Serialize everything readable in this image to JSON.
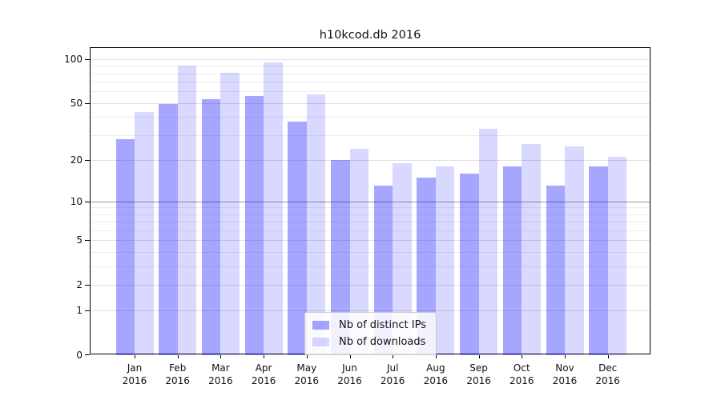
{
  "title": "h10kcod.db 2016",
  "chart_data": {
    "type": "bar",
    "title": "h10kcod.db 2016",
    "categories": [
      "Jan",
      "Feb",
      "Mar",
      "Apr",
      "May",
      "Jun",
      "Jul",
      "Aug",
      "Sep",
      "Oct",
      "Nov",
      "Dec"
    ],
    "x_year_label": "2016",
    "series": [
      {
        "name": "Nb of distinct IPs",
        "color": "rgba(0,0,255,0.35)",
        "values": [
          28,
          49,
          53,
          56,
          37,
          20,
          13,
          15,
          16,
          18,
          13,
          18
        ]
      },
      {
        "name": "Nb of downloads",
        "color": "rgba(0,0,255,0.15)",
        "values": [
          43,
          90,
          81,
          95,
          57,
          24,
          19,
          18,
          33,
          26,
          25,
          21
        ]
      }
    ],
    "xlabel": "",
    "ylabel": "",
    "yscale": "log1p",
    "ylim": [
      0,
      119
    ],
    "y_major_ticks": [
      0,
      1,
      2,
      5,
      10,
      20,
      50,
      100
    ],
    "y_minor_ticks": [
      3,
      4,
      6,
      7,
      8,
      9,
      30,
      40,
      60,
      70,
      80,
      90
    ],
    "grid": {
      "major_color": "#e0e0e0",
      "minor_color": "#ededed"
    },
    "reference_line": {
      "y": 10,
      "color": "#9a9a9a"
    },
    "legend_position": "lower-center",
    "frame_color": "#000000"
  }
}
